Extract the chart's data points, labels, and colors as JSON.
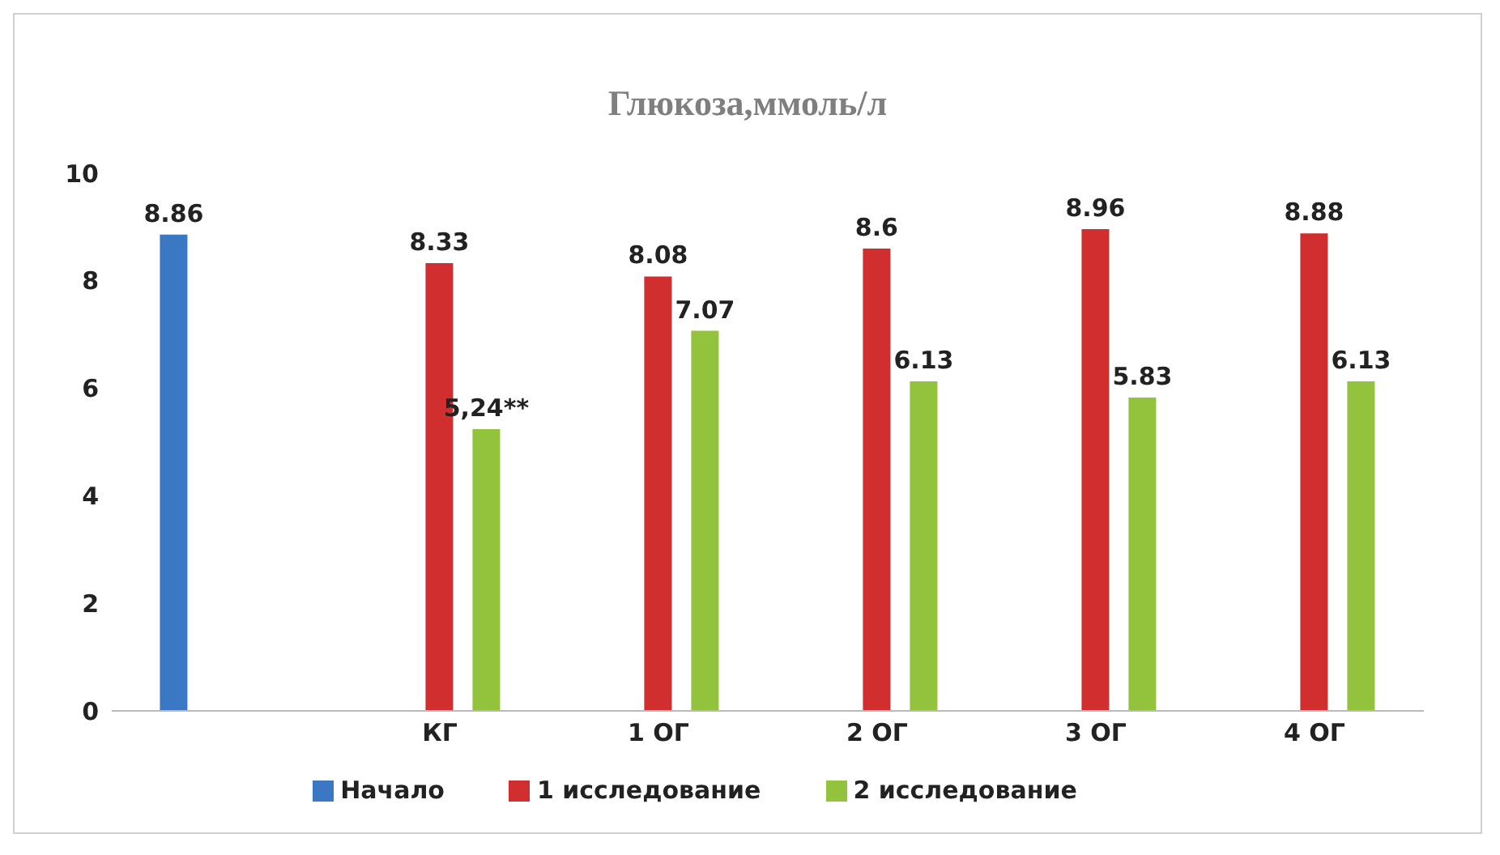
{
  "chart_data": {
    "type": "bar",
    "title": "Глюкоза,ммоль/л",
    "categories": [
      null,
      "КГ",
      "1 ОГ",
      "2 ОГ",
      "3 ОГ",
      "4 ОГ"
    ],
    "series": [
      {
        "name": "Начало",
        "color": "#3b78c4",
        "values": [
          8.86,
          null,
          null,
          null,
          null,
          null
        ],
        "value_labels": [
          "8.86",
          null,
          null,
          null,
          null,
          null
        ]
      },
      {
        "name": "1 исследование",
        "color": "#d12f2f",
        "values": [
          null,
          8.33,
          8.08,
          8.6,
          8.96,
          8.88
        ],
        "value_labels": [
          null,
          "8.33",
          "8.08",
          "8.6",
          "8.96",
          "8.88"
        ]
      },
      {
        "name": "2 исследование",
        "color": "#93c23c",
        "values": [
          null,
          5.24,
          7.07,
          6.13,
          5.83,
          6.13
        ],
        "value_labels": [
          null,
          "5,24**",
          "7.07",
          "6.13",
          "5.83",
          "6.13"
        ]
      }
    ],
    "ylim": [
      0,
      10
    ],
    "yticks": [
      0,
      2,
      4,
      6,
      8,
      10
    ],
    "grid": false,
    "legend": "bottom"
  }
}
